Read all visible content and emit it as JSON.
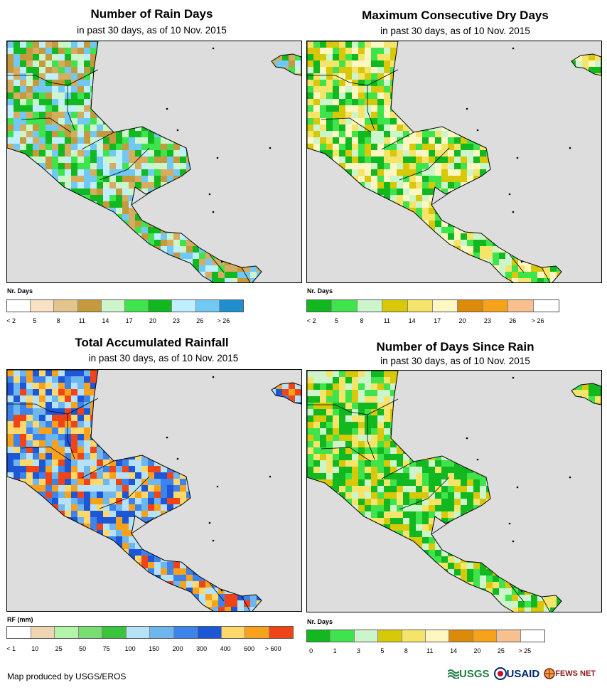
{
  "panels": [
    {
      "title": "Number of Rain Days",
      "subtitle": "in past 30 days, as of 10 Nov. 2015",
      "legend_title": "Nr. Days",
      "legend_colors": [
        "#ffffff",
        "#f8e1c4",
        "#e3c48d",
        "#c49a3c",
        "#ccf5cc",
        "#3fe34b",
        "#12b81f",
        "#bfeeff",
        "#71c9f3",
        "#1f8fcf"
      ],
      "legend_ticks": [
        "< 2",
        "5",
        "8",
        "11",
        "14",
        "17",
        "20",
        "23",
        "26",
        "> 26"
      ],
      "palette": [
        "#c49a3c",
        "#d6ad60",
        "#ccf5cc",
        "#3fe34b",
        "#12b81f",
        "#71c9f3",
        "#bfeeff"
      ]
    },
    {
      "title": "Maximum Consecutive Dry Days",
      "subtitle": "in past 30 days, as of 10 Nov. 2015",
      "legend_title": "Nr. Days",
      "legend_colors": [
        "#12b81f",
        "#3fe34b",
        "#ccf5cc",
        "#d7c80a",
        "#f5e46a",
        "#fff7c2",
        "#db8a0a",
        "#f7a21b",
        "#f8c08e",
        "#ffffff"
      ],
      "legend_ticks": [
        "< 2",
        "5",
        "8",
        "11",
        "14",
        "17",
        "20",
        "23",
        "26",
        "> 26"
      ],
      "palette": [
        "#12b81f",
        "#3fe34b",
        "#ccf5cc",
        "#d7c80a",
        "#f5e46a",
        "#fff7c2"
      ]
    },
    {
      "title": "Total Accumulated Rainfall",
      "subtitle": "in past 30 days, as of 10 Nov. 2015",
      "legend_title": "RF (mm)",
      "legend_colors": [
        "#ffffff",
        "#ecd5b0",
        "#b2f5a8",
        "#79dd72",
        "#39c43b",
        "#b6e2f8",
        "#6eb6ee",
        "#3c84ec",
        "#1e56d8",
        "#ffd86a",
        "#f8a21c",
        "#f04418"
      ],
      "legend_ticks": [
        "< 1",
        "10",
        "25",
        "50",
        "75",
        "100",
        "150",
        "200",
        "300",
        "400",
        "600",
        "> 600"
      ],
      "palette": [
        "#1e56d8",
        "#3c84ec",
        "#6eb6ee",
        "#ffd86a",
        "#f8a21c",
        "#f04418",
        "#b6e2f8"
      ]
    },
    {
      "title": "Number of Days Since Rain",
      "subtitle": "in past 30 days, as of 10 Nov. 2015",
      "legend_title": "Nr. Days",
      "legend_colors": [
        "#12b81f",
        "#3fe34b",
        "#ccf5cc",
        "#d7c80a",
        "#f5e46a",
        "#fff7c2",
        "#db8a0a",
        "#f7a21b",
        "#f8c08e",
        "#ffffff"
      ],
      "legend_ticks": [
        "0",
        "1",
        "3",
        "5",
        "8",
        "11",
        "14",
        "20",
        "25",
        "> 25"
      ],
      "palette": [
        "#12b81f",
        "#12b81f",
        "#3fe34b",
        "#ccf5cc",
        "#f5e46a",
        "#d7c80a"
      ]
    }
  ],
  "credit": "Map produced by USGS/EROS",
  "logos": [
    "USGS",
    "USAID",
    "FEWS NET"
  ]
}
